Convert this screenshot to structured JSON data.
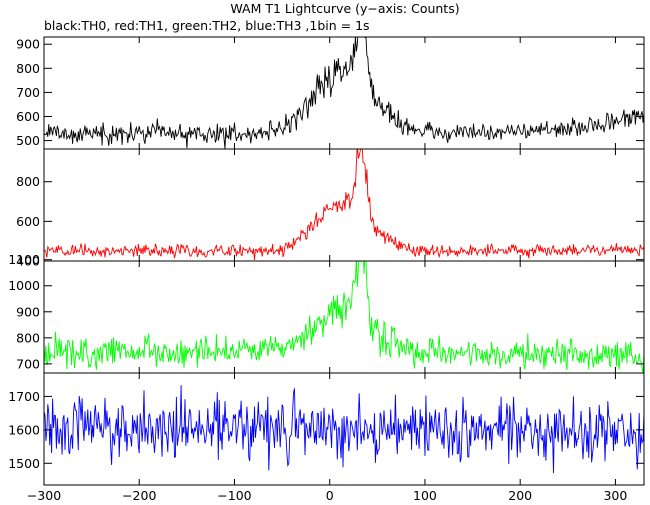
{
  "title": "WAM T1 Lightcurve (y−axis: Counts)",
  "subtitle": "black:TH0, red:TH1, green:TH2, blue:TH3 ,1bin = 1s",
  "chart_data": {
    "type": "line",
    "title": "WAM T1 Lightcurve (y−axis: Counts)",
    "subtitle": "black:TH0, red:TH1, green:TH2, blue:TH3 ,1bin = 1s",
    "x_range": [
      -300,
      330
    ],
    "x_ticks": [
      -300,
      -200,
      -100,
      0,
      100,
      200,
      300
    ],
    "x_tick_labels": [
      "−300",
      "−200",
      "−100",
      "0",
      "100",
      "200",
      "300"
    ],
    "x_step": 1,
    "panels": [
      {
        "name": "TH0",
        "color": "#000000",
        "ylim": [
          465,
          930
        ],
        "y_ticks": [
          500,
          600,
          700,
          800,
          900
        ],
        "baseline": [
          [
            -300,
            530
          ],
          [
            -100,
            528
          ],
          [
            0,
            535
          ],
          [
            150,
            535
          ],
          [
            250,
            545
          ],
          [
            300,
            580
          ],
          [
            330,
            610
          ]
        ],
        "noise": 20,
        "peaks": [
          [
            15,
            30,
            260
          ],
          [
            33,
            5,
            280
          ]
        ]
      },
      {
        "name": "TH1",
        "color": "#ff0000",
        "ylim": [
          400,
          965
        ],
        "y_ticks": [
          400,
          600,
          800
        ],
        "baseline": [
          [
            -300,
            450
          ],
          [
            0,
            450
          ],
          [
            330,
            455
          ]
        ],
        "noise": 16,
        "peaks": [
          [
            15,
            28,
            250
          ],
          [
            33,
            5,
            340
          ]
        ]
      },
      {
        "name": "TH2",
        "color": "#00ff00",
        "ylim": [
          665,
          1095
        ],
        "y_ticks": [
          700,
          800,
          900,
          1000,
          1100
        ],
        "baseline": [
          [
            -300,
            745
          ],
          [
            0,
            745
          ],
          [
            330,
            730
          ]
        ],
        "noise": 28,
        "peaks": [
          [
            15,
            28,
            170
          ],
          [
            33,
            5,
            250
          ]
        ]
      },
      {
        "name": "TH3",
        "color": "#0000ff",
        "ylim": [
          1435,
          1770
        ],
        "y_ticks": [
          1500,
          1600,
          1700
        ],
        "baseline": [
          [
            -300,
            1610
          ],
          [
            0,
            1605
          ],
          [
            330,
            1590
          ]
        ],
        "noise": 45,
        "peaks": []
      }
    ]
  }
}
